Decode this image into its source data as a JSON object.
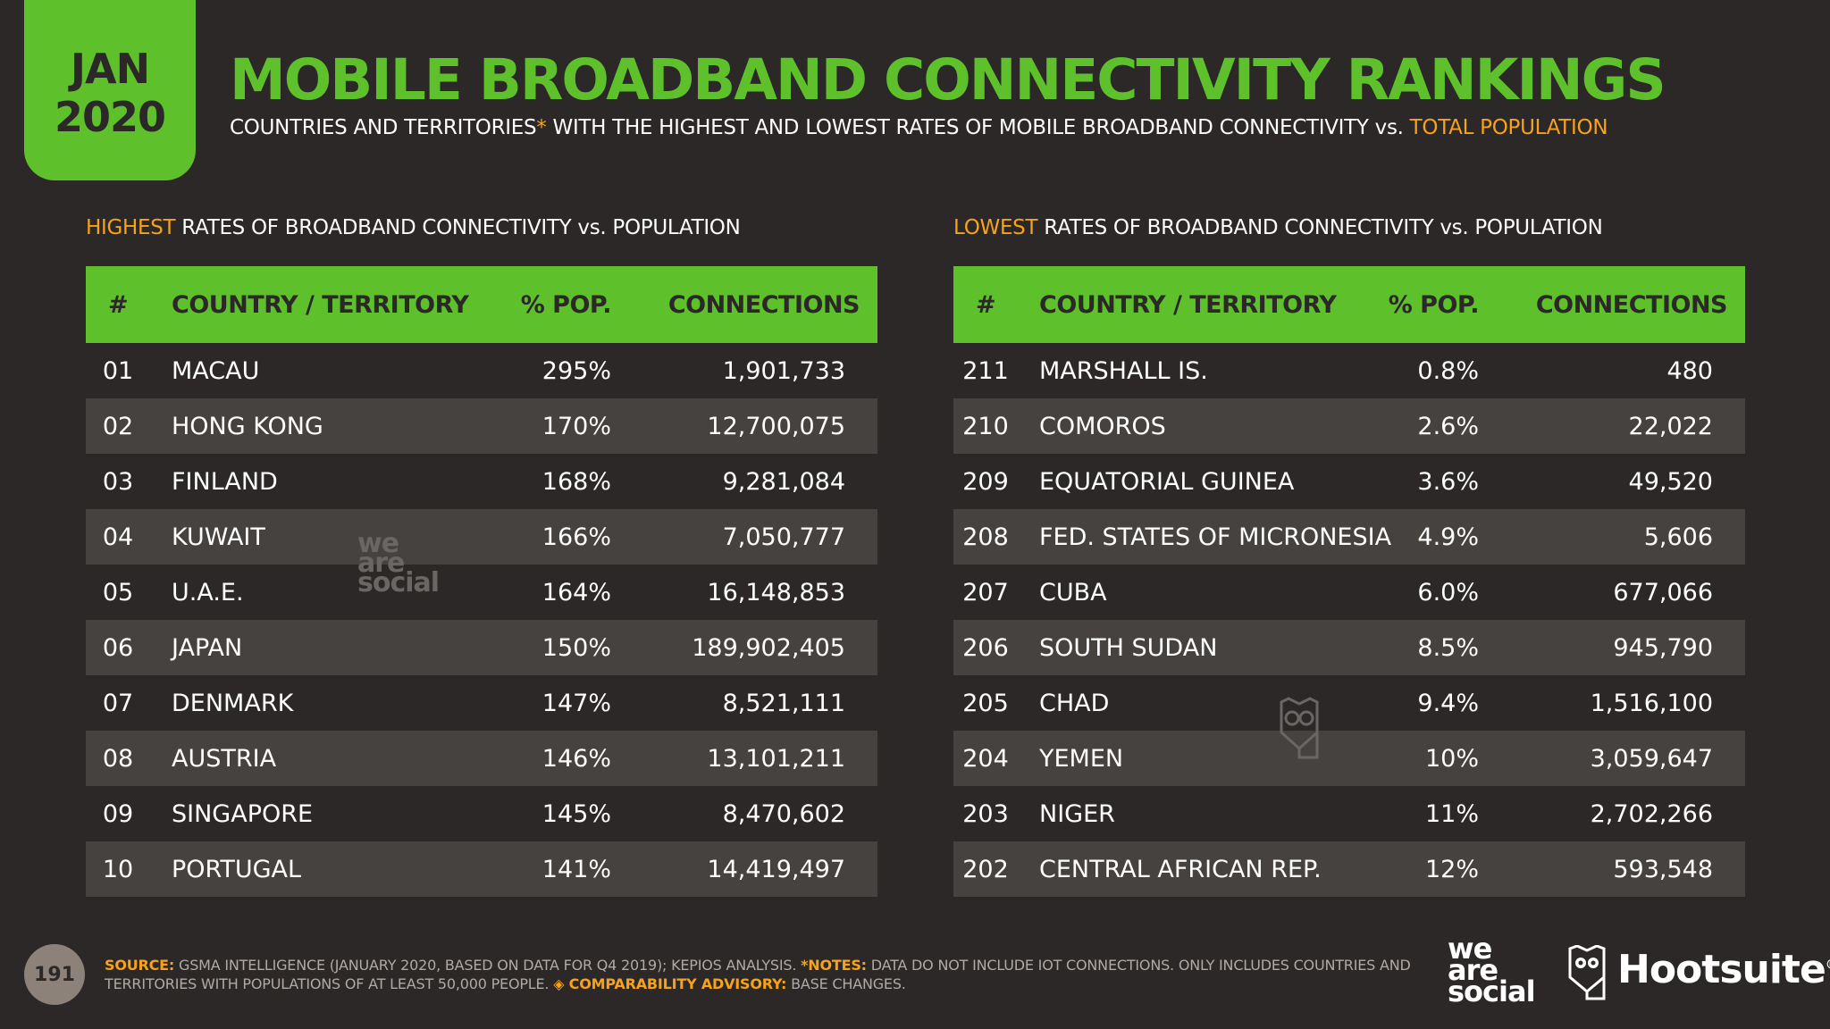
{
  "badge": {
    "month": "JAN",
    "year": "2020"
  },
  "header": {
    "title": "MOBILE BROADBAND CONNECTIVITY RANKINGS",
    "subtitle_part1": "COUNTRIES AND TERRITORIES",
    "subtitle_asterisk": "*",
    "subtitle_part2": " WITH THE HIGHEST AND LOWEST RATES OF MOBILE BROADBAND CONNECTIVITY vs. ",
    "subtitle_highlight": "TOTAL POPULATION"
  },
  "columns": {
    "rank": "#",
    "country": "COUNTRY / TERRITORY",
    "pop": "% POP.",
    "connections": "CONNECTIONS"
  },
  "highest": {
    "title_highlight": "HIGHEST",
    "title_rest": " RATES OF BROADBAND CONNECTIVITY vs. POPULATION",
    "rows": [
      {
        "rank": "01",
        "country": "MACAU",
        "pop": "295%",
        "connections": "1,901,733"
      },
      {
        "rank": "02",
        "country": "HONG KONG",
        "pop": "170%",
        "connections": "12,700,075"
      },
      {
        "rank": "03",
        "country": "FINLAND",
        "pop": "168%",
        "connections": "9,281,084"
      },
      {
        "rank": "04",
        "country": "KUWAIT",
        "pop": "166%",
        "connections": "7,050,777"
      },
      {
        "rank": "05",
        "country": "U.A.E.",
        "pop": "164%",
        "connections": "16,148,853"
      },
      {
        "rank": "06",
        "country": "JAPAN",
        "pop": "150%",
        "connections": "189,902,405"
      },
      {
        "rank": "07",
        "country": "DENMARK",
        "pop": "147%",
        "connections": "8,521,111"
      },
      {
        "rank": "08",
        "country": "AUSTRIA",
        "pop": "146%",
        "connections": "13,101,211"
      },
      {
        "rank": "09",
        "country": "SINGAPORE",
        "pop": "145%",
        "connections": "8,470,602"
      },
      {
        "rank": "10",
        "country": "PORTUGAL",
        "pop": "141%",
        "connections": "14,419,497"
      }
    ]
  },
  "lowest": {
    "title_highlight": "LOWEST",
    "title_rest": " RATES OF BROADBAND CONNECTIVITY vs. POPULATION",
    "rows": [
      {
        "rank": "211",
        "country": "MARSHALL IS.",
        "pop": "0.8%",
        "connections": "480"
      },
      {
        "rank": "210",
        "country": "COMOROS",
        "pop": "2.6%",
        "connections": "22,022"
      },
      {
        "rank": "209",
        "country": "EQUATORIAL GUINEA",
        "pop": "3.6%",
        "connections": "49,520"
      },
      {
        "rank": "208",
        "country": "FED. STATES OF MICRONESIA",
        "pop": "4.9%",
        "connections": "5,606"
      },
      {
        "rank": "207",
        "country": "CUBA",
        "pop": "6.0%",
        "connections": "677,066"
      },
      {
        "rank": "206",
        "country": "SOUTH SUDAN",
        "pop": "8.5%",
        "connections": "945,790"
      },
      {
        "rank": "205",
        "country": "CHAD",
        "pop": "9.4%",
        "connections": "1,516,100"
      },
      {
        "rank": "204",
        "country": "YEMEN",
        "pop": "10%",
        "connections": "3,059,647"
      },
      {
        "rank": "203",
        "country": "NIGER",
        "pop": "11%",
        "connections": "2,702,266"
      },
      {
        "rank": "202",
        "country": "CENTRAL AFRICAN REP.",
        "pop": "12%",
        "connections": "593,548"
      }
    ]
  },
  "watermark": {
    "line1": "we",
    "line2": "are",
    "line3": "social"
  },
  "footer": {
    "page_number": "191",
    "source_label": "SOURCE:",
    "source_text": " GSMA INTELLIGENCE (JANUARY 2020, BASED ON DATA FOR Q4 2019); KEPIOS ANALYSIS. ",
    "notes_label": "*NOTES:",
    "notes_text": " DATA DO NOT INCLUDE IOT CONNECTIONS. ONLY INCLUDES COUNTRIES AND TERRITORIES WITH POPULATIONS OF AT LEAST 50,000 PEOPLE. ",
    "advisory_label": "◈ COMPARABILITY ADVISORY:",
    "advisory_text": " BASE CHANGES.",
    "logo_was_1": "we",
    "logo_was_2": "are",
    "logo_was_3": "social",
    "logo_hootsuite": "Hootsuite",
    "logo_hootsuite_mark": "®"
  },
  "colors": {
    "accent_green": "#5ec12c",
    "highlight_orange": "#f7a21b",
    "background": "#2b2827",
    "row_alt": "#46423f"
  },
  "icons": {
    "watermark_owl": "owl-icon",
    "hootsuite_owl": "owl-icon"
  }
}
